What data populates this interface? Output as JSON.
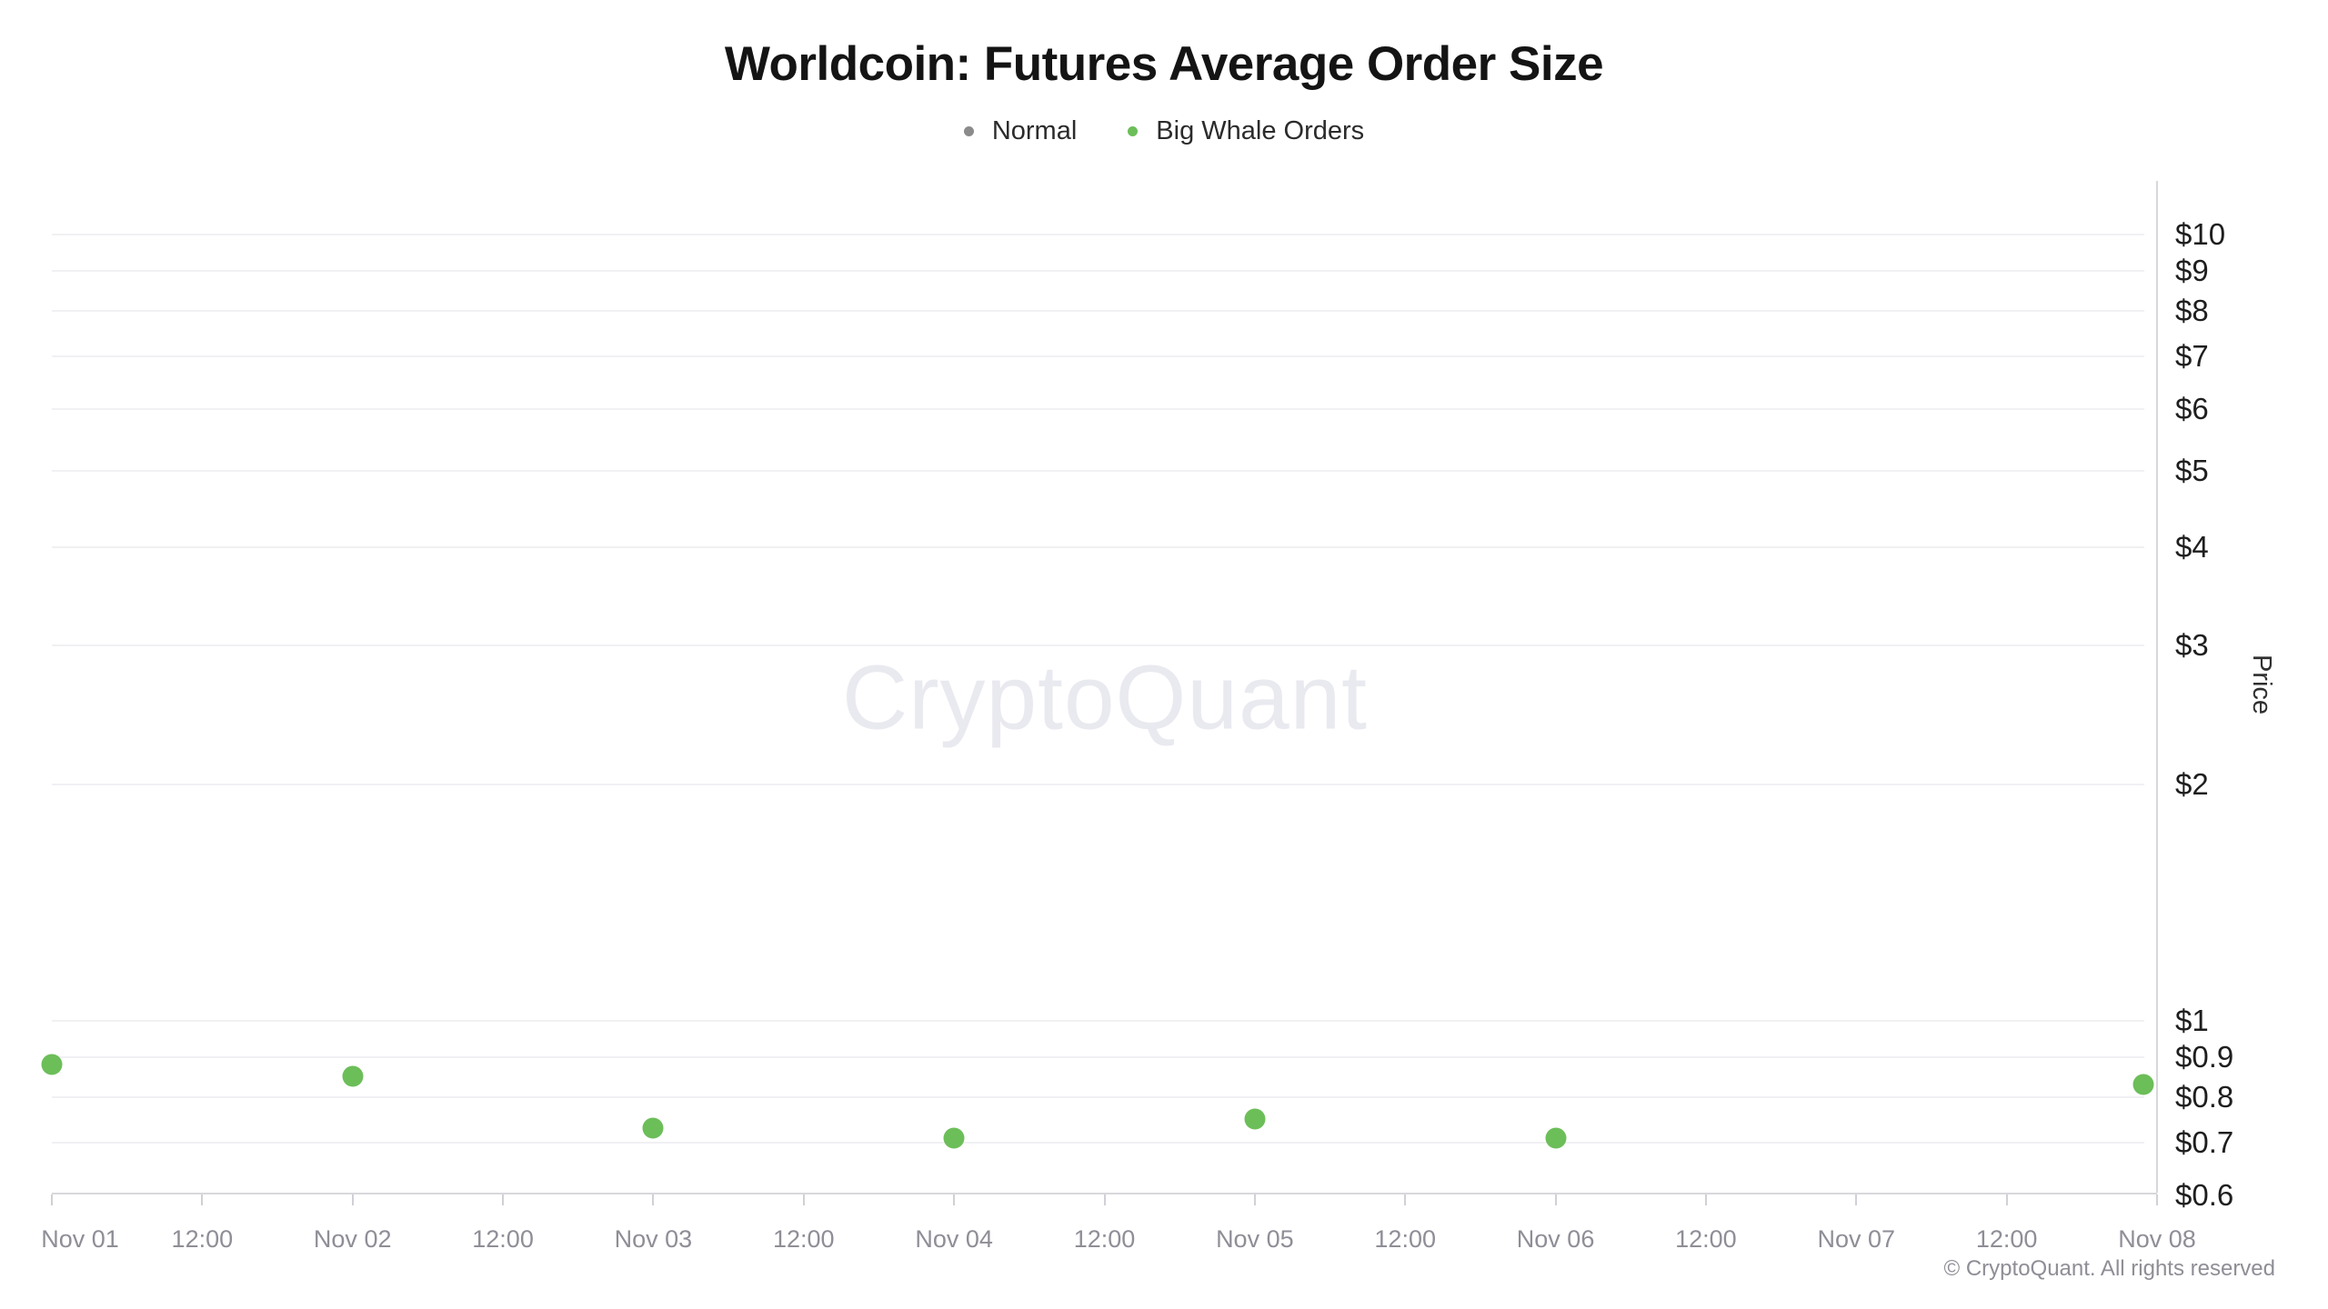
{
  "title": "Worldcoin: Futures Average Order Size",
  "legend": [
    {
      "label": "Normal",
      "color": "#8b8b8b"
    },
    {
      "label": "Big Whale Orders",
      "color": "#6cbe59"
    }
  ],
  "watermark": "CryptoQuant",
  "copyright": "© CryptoQuant. All rights reserved",
  "chart_data": {
    "type": "scatter",
    "title": "Worldcoin: Futures Average Order Size",
    "legend_position": "top",
    "grid": true,
    "x_axis": {
      "labels": [
        "Nov 01",
        "12:00",
        "Nov 02",
        "12:00",
        "Nov 03",
        "12:00",
        "Nov 04",
        "12:00",
        "Nov 05",
        "12:00",
        "Nov 06",
        "12:00",
        "Nov 07",
        "12:00",
        "Nov 08"
      ],
      "range": [
        "Nov 01 00:00",
        "Nov 08 00:00"
      ]
    },
    "y_axis": {
      "title": "Price",
      "scale": "log",
      "unit": "$",
      "tick_labels": [
        "$10",
        "$9",
        "$8",
        "$7",
        "$6",
        "$5",
        "$4",
        "$3",
        "$2",
        "$1",
        "$0.9",
        "$0.8",
        "$0.7",
        "$0.6"
      ],
      "tick_values": [
        10,
        9,
        8,
        7,
        6,
        5,
        4,
        3,
        2,
        1,
        0.9,
        0.8,
        0.7,
        0.6
      ],
      "ylim": [
        0.6,
        11.7
      ]
    },
    "series": [
      {
        "name": "Normal",
        "color": "#8b8b8b",
        "points": []
      },
      {
        "name": "Big Whale Orders",
        "color": "#6cbe59",
        "points": [
          {
            "x": "Nov 01",
            "price": 0.88
          },
          {
            "x": "Nov 02",
            "price": 0.85
          },
          {
            "x": "Nov 03",
            "price": 0.73
          },
          {
            "x": "Nov 04",
            "price": 0.71
          },
          {
            "x": "Nov 05",
            "price": 0.75
          },
          {
            "x": "Nov 06",
            "price": 0.71
          },
          {
            "x": "Nov 08",
            "price": 0.83
          }
        ]
      }
    ]
  }
}
